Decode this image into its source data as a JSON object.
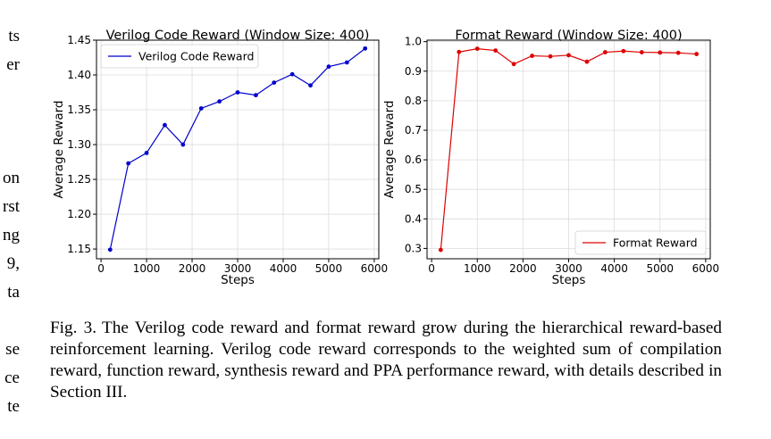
{
  "page": {
    "left_edge_fragments": [
      "ts",
      "er",
      "on",
      "rst",
      "ng",
      "9,",
      "ta",
      "se",
      "ce",
      "te"
    ],
    "caption": {
      "label": "Fig. 3.",
      "text": "The Verilog code reward and format reward grow during the hierarchical reward-based reinforcement learning. Verilog code reward corresponds to the weighted sum of compilation reward, function reward, synthesis reward and PPA performance reward, with details described in Section III."
    }
  },
  "chart_data": [
    {
      "type": "line",
      "title": "Verilog Code Reward (Window Size: 400)",
      "xlabel": "Steps",
      "ylabel": "Average Reward",
      "xlim": [
        -100,
        6100
      ],
      "ylim": [
        1.136,
        1.45
      ],
      "xticks": [
        0,
        1000,
        2000,
        3000,
        4000,
        5000,
        6000
      ],
      "yticks": [
        1.15,
        1.2,
        1.25,
        1.3,
        1.35,
        1.4,
        1.45
      ],
      "ytick_labels": [
        "1.15",
        "1.20",
        "1.25",
        "1.30",
        "1.35",
        "1.40",
        "1.45"
      ],
      "grid": true,
      "legend": "top-left",
      "color": "#0000cc",
      "series": [
        {
          "name": "Verilog Code Reward",
          "x": [
            200,
            600,
            1000,
            1400,
            1800,
            2200,
            2600,
            3000,
            3400,
            3800,
            4200,
            4600,
            5000,
            5400,
            5800
          ],
          "y": [
            1.149,
            1.273,
            1.288,
            1.328,
            1.3,
            1.352,
            1.362,
            1.375,
            1.371,
            1.389,
            1.401,
            1.385,
            1.412,
            1.418,
            1.438
          ]
        }
      ]
    },
    {
      "type": "line",
      "title": "Format Reward (Window Size: 400)",
      "xlabel": "Steps",
      "ylabel": "Average Reward",
      "xlim": [
        -100,
        6100
      ],
      "ylim": [
        0.265,
        1.005
      ],
      "xticks": [
        0,
        1000,
        2000,
        3000,
        4000,
        5000,
        6000
      ],
      "yticks": [
        0.3,
        0.4,
        0.5,
        0.6,
        0.7,
        0.8,
        0.9,
        1.0
      ],
      "ytick_labels": [
        "0.3",
        "0.4",
        "0.5",
        "0.6",
        "0.7",
        "0.8",
        "0.9",
        "1.0"
      ],
      "grid": true,
      "legend": "bottom-right",
      "color": "#dd0000",
      "series": [
        {
          "name": "Format Reward",
          "x": [
            200,
            600,
            1000,
            1400,
            1800,
            2200,
            2600,
            3000,
            3400,
            3800,
            4200,
            4600,
            5000,
            5400,
            5800
          ],
          "y": [
            0.295,
            0.965,
            0.976,
            0.97,
            0.924,
            0.952,
            0.95,
            0.954,
            0.932,
            0.964,
            0.968,
            0.964,
            0.963,
            0.962,
            0.958
          ]
        }
      ]
    }
  ]
}
